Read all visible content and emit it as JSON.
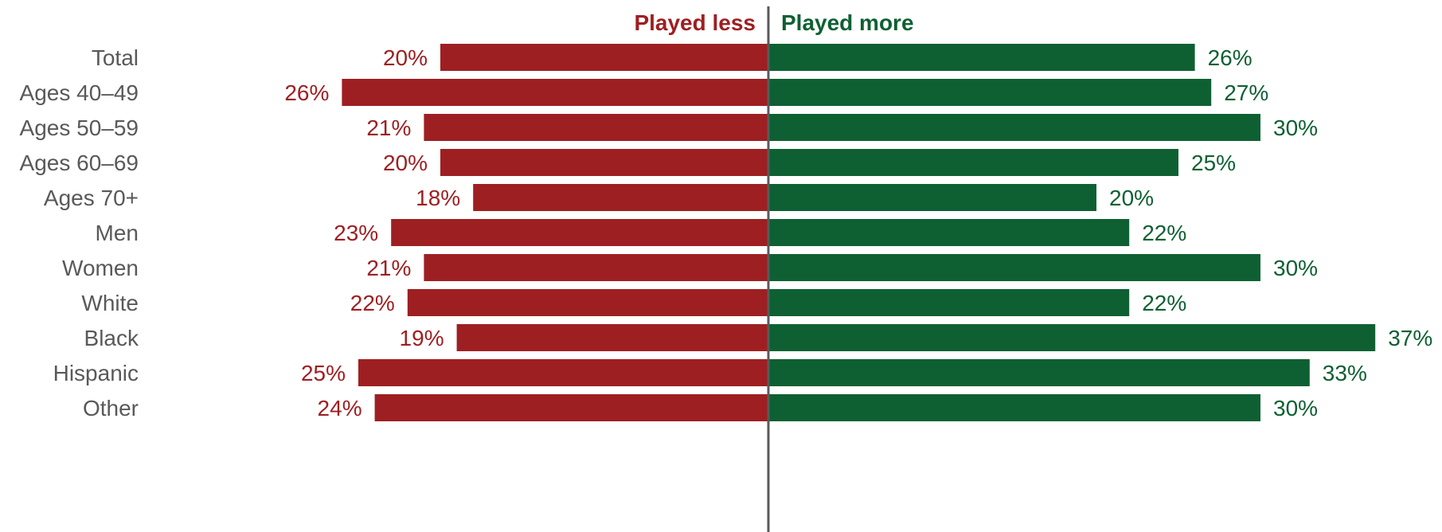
{
  "chart_data": {
    "type": "bar",
    "orientation": "horizontal",
    "diverging": true,
    "categories": [
      "Total",
      "Ages 40–49",
      "Ages 50–59",
      "Ages 60–69",
      "Ages 70+",
      "Men",
      "Women",
      "White",
      "Black",
      "Hispanic",
      "Other"
    ],
    "groups": [
      [
        "Total"
      ],
      [
        "Ages 40–49",
        "Ages 50–59",
        "Ages 60–69",
        "Ages 70+"
      ],
      [
        "Men",
        "Women"
      ],
      [
        "White",
        "Black",
        "Hispanic",
        "Other"
      ]
    ],
    "series": [
      {
        "name": "Played less",
        "direction": "left",
        "color": "#9e1f21",
        "values": [
          20,
          26,
          21,
          20,
          18,
          23,
          21,
          22,
          19,
          25,
          24
        ],
        "labels": [
          "20%",
          "26%",
          "21%",
          "20%",
          "18%",
          "23%",
          "21%",
          "22%",
          "19%",
          "25%",
          "24%"
        ]
      },
      {
        "name": "Played more",
        "direction": "right",
        "color": "#0e6032",
        "values": [
          26,
          27,
          30,
          25,
          20,
          22,
          30,
          22,
          37,
          33,
          30
        ],
        "labels": [
          "26%",
          "27%",
          "30%",
          "25%",
          "20%",
          "22%",
          "30%",
          "22%",
          "37%",
          "33%",
          "30%"
        ]
      }
    ],
    "unit": "%",
    "axis_color": "#595959",
    "grid": false
  }
}
